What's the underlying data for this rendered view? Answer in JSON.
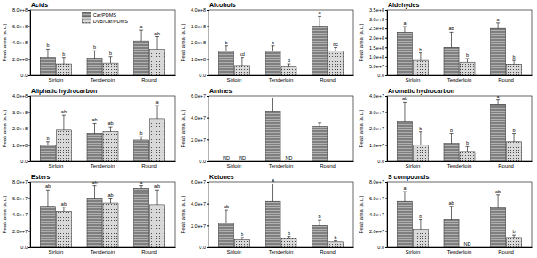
{
  "chart_data": [
    {
      "type": "bar",
      "title": "Acids",
      "ylabel": "Peak area (a.u.)",
      "legend": "top",
      "categories": [
        "Sirloin",
        "Tenderloin",
        "Round"
      ],
      "ylim": [
        0,
        800000000.0
      ],
      "yticks": [
        {
          "value": 0,
          "label": "0.0"
        },
        {
          "value": 200000000.0,
          "label": "2.0e+8"
        },
        {
          "value": 400000000.0,
          "label": "4.0e+8"
        },
        {
          "value": 600000000.0,
          "label": "6.0e+8"
        },
        {
          "value": 800000000.0,
          "label": "8.0e+8"
        }
      ],
      "series": [
        {
          "name": "Car/PDMS",
          "color": "#b0b0b0",
          "values": [
            220000000.0,
            210000000.0,
            420000000.0
          ],
          "errors": [
            100000000.0,
            90000000.0,
            130000000.0
          ],
          "letters": [
            "b",
            "b",
            "a"
          ]
        },
        {
          "name": "DVB/Car/PDMS",
          "color": "#d9d9d9",
          "values": [
            140000000.0,
            150000000.0,
            320000000.0
          ],
          "errors": [
            80000000.0,
            80000000.0,
            150000000.0
          ],
          "letters": [
            "b",
            "b",
            "ab"
          ]
        }
      ]
    },
    {
      "type": "bar",
      "title": "Alcohols",
      "ylabel": "Peak area (a.u.)",
      "categories": [
        "Sirloin",
        "Tenderloin",
        "Round"
      ],
      "ylim": [
        0,
        400000000.0
      ],
      "yticks": [
        {
          "value": 0,
          "label": "0.0"
        },
        {
          "value": 100000000.0,
          "label": "1.0e+8"
        },
        {
          "value": 200000000.0,
          "label": "2.0e+8"
        },
        {
          "value": 300000000.0,
          "label": "3.0e+8"
        },
        {
          "value": 400000000.0,
          "label": "4.0e+8"
        }
      ],
      "series": [
        {
          "color": "#b0b0b0",
          "values": [
            150000000.0,
            150000000.0,
            300000000.0
          ],
          "errors": [
            30000000.0,
            30000000.0,
            60000000.0
          ],
          "letters": [
            "b",
            "b",
            "a"
          ]
        },
        {
          "color": "#d9d9d9",
          "values": [
            60000000.0,
            50000000.0,
            150000000.0
          ],
          "errors": [
            50000000.0,
            20000000.0,
            20000000.0
          ],
          "letters": [
            "cd",
            "d",
            "bc"
          ]
        }
      ]
    },
    {
      "type": "bar",
      "title": "Aldehydes",
      "ylabel": "Peak area (a.u.)",
      "categories": [
        "Sirloin",
        "Tenderloin",
        "Round"
      ],
      "ylim": [
        0,
        350000000.0
      ],
      "yticks": [
        {
          "value": 0,
          "label": "0.0"
        },
        {
          "value": 50000000.0,
          "label": "5.0e+7"
        },
        {
          "value": 100000000.0,
          "label": "1.0e+8"
        },
        {
          "value": 150000000.0,
          "label": "1.5e+8"
        },
        {
          "value": 200000000.0,
          "label": "2.0e+8"
        },
        {
          "value": 250000000.0,
          "label": "2.5e+8"
        },
        {
          "value": 300000000.0,
          "label": "3.0e+8"
        },
        {
          "value": 350000000.0,
          "label": "3.5e+8"
        }
      ],
      "series": [
        {
          "color": "#b0b0b0",
          "values": [
            230000000.0,
            150000000.0,
            250000000.0
          ],
          "errors": [
            30000000.0,
            80000000.0,
            30000000.0
          ],
          "letters": [
            "a",
            "ab",
            "a"
          ]
        },
        {
          "color": "#d9d9d9",
          "values": [
            80000000.0,
            70000000.0,
            60000000.0
          ],
          "errors": [
            40000000.0,
            20000000.0,
            20000000.0
          ],
          "letters": [
            "b",
            "b",
            "b"
          ]
        }
      ]
    },
    {
      "type": "bar",
      "title": "Aliphatic hydrocarbon",
      "ylabel": "Peak area (a.u.)",
      "categories": [
        "Sirloin",
        "Tenderloin",
        "Round"
      ],
      "ylim": [
        0,
        400000000.0
      ],
      "yticks": [
        {
          "value": 0,
          "label": "0.0"
        },
        {
          "value": 100000000.0,
          "label": "1.0e+8"
        },
        {
          "value": 200000000.0,
          "label": "2.0e+8"
        },
        {
          "value": 300000000.0,
          "label": "3.0e+8"
        },
        {
          "value": 400000000.0,
          "label": "4.0e+8"
        }
      ],
      "series": [
        {
          "color": "#b0b0b0",
          "values": [
            100000000.0,
            170000000.0,
            130000000.0
          ],
          "errors": [
            20000000.0,
            60000000.0,
            20000000.0
          ],
          "letters": [
            "b",
            "ab",
            "b"
          ]
        },
        {
          "color": "#d9d9d9",
          "values": [
            190000000.0,
            180000000.0,
            260000000.0
          ],
          "errors": [
            90000000.0,
            30000000.0,
            80000000.0
          ],
          "letters": [
            "ab",
            "ab",
            "a"
          ]
        }
      ]
    },
    {
      "type": "bar",
      "title": "Amines",
      "ylabel": "Peak area (a.u.)",
      "categories": [
        "Sirloin",
        "Tenderloin",
        "Round"
      ],
      "ylim": [
        0,
        60000000.0
      ],
      "yticks": [
        {
          "value": 0,
          "label": "0.0"
        },
        {
          "value": 20000000.0,
          "label": "2.0e+7"
        },
        {
          "value": 40000000.0,
          "label": "4.0e+7"
        },
        {
          "value": 60000000.0,
          "label": "6.0e+7"
        }
      ],
      "series": [
        {
          "color": "#b0b0b0",
          "values": [
            null,
            46000000.0,
            32000000.0
          ],
          "errors": [
            null,
            12000000.0,
            3000000.0
          ],
          "letters": [
            "ND",
            null,
            null
          ]
        },
        {
          "color": "#d9d9d9",
          "values": [
            null,
            null,
            null
          ],
          "errors": [
            null,
            null,
            null
          ],
          "letters": [
            "ND",
            "ND",
            null
          ]
        }
      ]
    },
    {
      "type": "bar",
      "title": "Aromatic hydrocarbon",
      "ylabel": "Peak area (a.u.)",
      "categories": [
        "Sirloin",
        "Tenderloin",
        "Round"
      ],
      "ylim": [
        0,
        40000000.0
      ],
      "yticks": [
        {
          "value": 0,
          "label": "0.0"
        },
        {
          "value": 10000000.0,
          "label": "1.0e+7"
        },
        {
          "value": 20000000.0,
          "label": "2.0e+7"
        },
        {
          "value": 30000000.0,
          "label": "3.0e+7"
        },
        {
          "value": 40000000.0,
          "label": "4.0e+7"
        }
      ],
      "series": [
        {
          "color": "#b0b0b0",
          "values": [
            24000000.0,
            11000000.0,
            35000000.0
          ],
          "errors": [
            12000000.0,
            6000000.0,
            2500000.0
          ],
          "letters": [
            "ab",
            "b",
            "a"
          ]
        },
        {
          "color": "#d9d9d9",
          "values": [
            10000000.0,
            6000000.0,
            12000000.0
          ],
          "errors": [
            8000000.0,
            3000000.0,
            5000000.0
          ],
          "letters": [
            "b",
            "b",
            "b"
          ]
        }
      ]
    },
    {
      "type": "bar",
      "title": "Esters",
      "ylabel": "Peak area (a.u.)",
      "categories": [
        "Sirloin",
        "Tenderloin",
        "Round"
      ],
      "ylim": [
        0,
        80000000.0
      ],
      "yticks": [
        {
          "value": 0,
          "label": "0.0"
        },
        {
          "value": 20000000.0,
          "label": "2.0e+7"
        },
        {
          "value": 40000000.0,
          "label": "4.0e+7"
        },
        {
          "value": 60000000.0,
          "label": "6.0e+7"
        },
        {
          "value": 80000000.0,
          "label": "8.0e+7"
        }
      ],
      "series": [
        {
          "color": "#b0b0b0",
          "values": [
            50000000.0,
            60000000.0,
            72000000.0
          ],
          "errors": [
            20000000.0,
            15000000.0,
            3000000.0
          ],
          "letters": [
            "ab",
            "ab",
            "a"
          ]
        },
        {
          "color": "#d9d9d9",
          "values": [
            44000000.0,
            54000000.0,
            52000000.0
          ],
          "errors": [
            5000000.0,
            6000000.0,
            18000000.0
          ],
          "letters": [
            "ab",
            "ab",
            "ab"
          ]
        }
      ]
    },
    {
      "type": "bar",
      "title": "Ketones",
      "ylabel": "Peak area (a.u.)",
      "categories": [
        "Sirloin",
        "Tenderloin",
        "Round"
      ],
      "ylim": [
        0,
        60000000.0
      ],
      "yticks": [
        {
          "value": 0,
          "label": "0.0"
        },
        {
          "value": 20000000.0,
          "label": "2.0e+7"
        },
        {
          "value": 40000000.0,
          "label": "4.0e+7"
        },
        {
          "value": 60000000.0,
          "label": "6.0e+7"
        }
      ],
      "series": [
        {
          "color": "#b0b0b0",
          "values": [
            22000000.0,
            42000000.0,
            20000000.0
          ],
          "errors": [
            12000000.0,
            16000000.0,
            5000000.0
          ],
          "letters": [
            "ab",
            "a",
            "b"
          ]
        },
        {
          "color": "#d9d9d9",
          "values": [
            7000000.0,
            8000000.0,
            5000000.0
          ],
          "errors": [
            2000000.0,
            2000000.0,
            1000000.0
          ],
          "letters": [
            "b",
            "b",
            "b"
          ]
        }
      ]
    },
    {
      "type": "bar",
      "title": "S compounds",
      "ylabel": "Peak area (a.u.)",
      "categories": [
        "Sirloin",
        "Tenderloin",
        "Round"
      ],
      "ylim": [
        0,
        80000000.0
      ],
      "yticks": [
        {
          "value": 0,
          "label": "0.0"
        },
        {
          "value": 20000000.0,
          "label": "2.0e+7"
        },
        {
          "value": 40000000.0,
          "label": "4.0e+7"
        },
        {
          "value": 60000000.0,
          "label": "6.0e+7"
        },
        {
          "value": 80000000.0,
          "label": "8.0e+7"
        }
      ],
      "series": [
        {
          "color": "#b0b0b0",
          "values": [
            56000000.0,
            34000000.0,
            48000000.0
          ],
          "errors": [
            12000000.0,
            16000000.0,
            16000000.0
          ],
          "letters": [
            "a",
            "ab",
            "ab"
          ]
        },
        {
          "color": "#d9d9d9",
          "values": [
            22000000.0,
            null,
            12000000.0
          ],
          "errors": [
            12000000.0,
            null,
            3000000.0
          ],
          "letters": [
            "b",
            "ND",
            "b"
          ]
        }
      ]
    }
  ]
}
